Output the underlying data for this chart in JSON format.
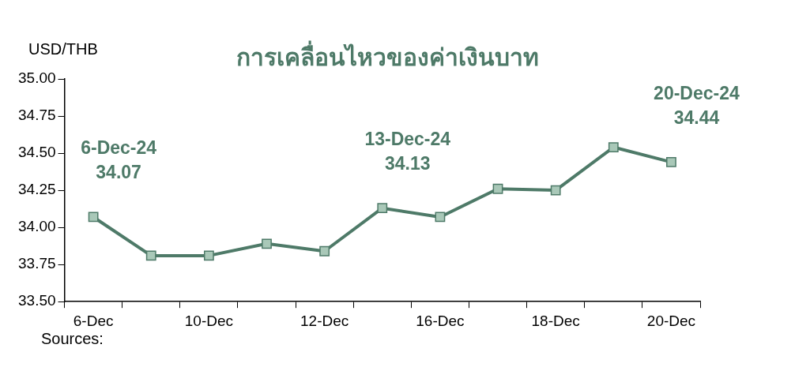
{
  "chart_data": {
    "type": "line",
    "title": "การเคลื่อนไหวของค่าเงินบาท",
    "ylabel": "USD/THB",
    "categories": [
      "6-Dec",
      null,
      "10-Dec",
      null,
      "12-Dec",
      null,
      "16-Dec",
      null,
      "18-Dec",
      null,
      "20-Dec"
    ],
    "series": [
      {
        "color": "#4e7a68",
        "values": [
          34.07,
          33.81,
          33.81,
          33.89,
          33.84,
          34.13,
          34.07,
          34.26,
          34.25,
          34.54,
          34.44
        ]
      }
    ],
    "ylim": [
      33.5,
      35.0
    ],
    "yticks": [
      {
        "value": 33.5,
        "label": "33.50"
      },
      {
        "value": 33.75,
        "label": "33.75"
      },
      {
        "value": 34.0,
        "label": "34.00"
      },
      {
        "value": 34.25,
        "label": "34.25"
      },
      {
        "value": 34.5,
        "label": "34.50"
      },
      {
        "value": 34.75,
        "label": "34.75"
      },
      {
        "value": 35.0,
        "label": "35.00"
      }
    ],
    "annotations": [
      {
        "text": "6-Dec-24\n34.07",
        "x": "6-Dec",
        "y": 34.07
      },
      {
        "text": "13-Dec-24\n34.13",
        "y": 34.13
      },
      {
        "text": "20-Dec-24\n34.44",
        "x": "20-Dec",
        "y": 34.44
      },
      "Sources:"
    ],
    "marker": "square",
    "grid": false,
    "legend": false
  }
}
